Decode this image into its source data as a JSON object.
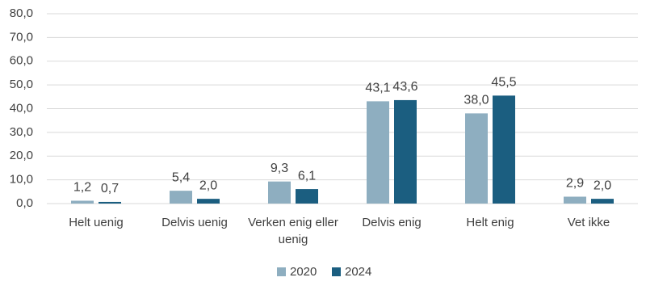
{
  "chart_data": {
    "type": "bar",
    "categories": [
      "Helt uenig",
      "Delvis uenig",
      "Verken enig eller uenig",
      "Delvis enig",
      "Helt enig",
      "Vet ikke"
    ],
    "series": [
      {
        "name": "2020",
        "color": "#8eaec0",
        "values": [
          1.2,
          5.4,
          9.3,
          43.1,
          38.0,
          2.9
        ],
        "value_labels": [
          "1,2",
          "5,4",
          "9,3",
          "43,1",
          "38,0",
          "2,9"
        ]
      },
      {
        "name": "2024",
        "color": "#1b5e80",
        "values": [
          0.7,
          2.0,
          6.1,
          43.6,
          45.5,
          2.0
        ],
        "value_labels": [
          "0,7",
          "2,0",
          "6,1",
          "43,6",
          "45,5",
          "2,0"
        ]
      }
    ],
    "ylim": [
      0,
      80
    ],
    "yticks": [
      {
        "value": 0,
        "label": "0,0"
      },
      {
        "value": 10,
        "label": "10,0"
      },
      {
        "value": 20,
        "label": "20,0"
      },
      {
        "value": 30,
        "label": "30,0"
      },
      {
        "value": 40,
        "label": "40,0"
      },
      {
        "value": 50,
        "label": "50,0"
      },
      {
        "value": 60,
        "label": "60,0"
      },
      {
        "value": 70,
        "label": "70,0"
      },
      {
        "value": 80,
        "label": "80,0"
      }
    ],
    "grid": true,
    "legend": "bottom"
  }
}
